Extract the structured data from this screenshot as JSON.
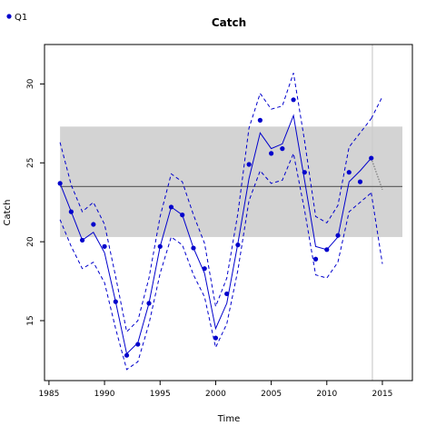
{
  "chart_data": {
    "type": "line",
    "title": "Catch",
    "xlabel": "Time",
    "ylabel": "Catch",
    "xlim": [
      1984.6,
      2017.7
    ],
    "ylim": [
      11.2,
      32.5
    ],
    "x_ticks": [
      1985,
      1990,
      1995,
      2000,
      2005,
      2010,
      2015
    ],
    "y_ticks": [
      15,
      20,
      25,
      30
    ],
    "grid": false,
    "legend_position": "top-left",
    "colors": {
      "series": "#0000cc",
      "band": "#d3d3d3",
      "mean_line": "#666666",
      "forecast": "#666666",
      "vline": "#cccccc"
    },
    "band": {
      "x": [
        1986,
        2016.8
      ],
      "y": [
        20.3,
        27.3
      ]
    },
    "hline": 23.5,
    "vline": 2014.1,
    "x": [
      1986,
      1987,
      1988,
      1989,
      1990,
      1991,
      1992,
      1993,
      1994,
      1995,
      1996,
      1997,
      1998,
      1999,
      2000,
      2001,
      2002,
      2003,
      2004,
      2005,
      2006,
      2007,
      2008,
      2009,
      2010,
      2011,
      2012,
      2013,
      2014
    ],
    "series": [
      {
        "name": "Q1",
        "style": "points",
        "values": [
          23.7,
          21.9,
          20.1,
          21.1,
          19.7,
          16.2,
          12.8,
          13.5,
          16.1,
          19.7,
          22.2,
          21.7,
          19.6,
          18.3,
          13.9,
          16.7,
          19.8,
          24.9,
          27.7,
          25.6,
          25.9,
          29.0,
          24.4,
          18.9,
          19.5,
          20.4,
          24.4,
          23.8,
          25.3
        ]
      },
      {
        "style": "solid",
        "values": [
          23.7,
          21.9,
          20.1,
          20.6,
          19.3,
          16.2,
          12.9,
          13.6,
          16.1,
          19.7,
          22.2,
          21.7,
          19.6,
          18.0,
          14.5,
          16.1,
          19.9,
          24.0,
          26.9,
          25.9,
          26.2,
          28.0,
          23.9,
          19.7,
          19.5,
          20.3,
          23.8,
          24.5,
          25.3
        ]
      },
      {
        "style": "dashed",
        "values": [
          26.3,
          23.6,
          21.9,
          22.5,
          21.1,
          17.8,
          14.3,
          15.0,
          17.7,
          21.6,
          24.3,
          23.8,
          21.7,
          19.9,
          15.9,
          17.7,
          21.8,
          27.2,
          29.4,
          28.4,
          28.6,
          30.7,
          26.4,
          21.6,
          21.2,
          22.3,
          26.0,
          26.9,
          27.8
        ]
      },
      {
        "style": "dashed",
        "values": [
          21.4,
          19.7,
          18.3,
          18.7,
          17.4,
          14.5,
          11.9,
          12.4,
          14.8,
          18.0,
          20.3,
          19.8,
          17.9,
          16.5,
          13.3,
          14.8,
          18.2,
          22.6,
          24.5,
          23.7,
          23.9,
          25.6,
          22.0,
          17.9,
          17.7,
          18.7,
          21.9,
          22.5,
          23.1
        ]
      }
    ],
    "forecast": {
      "x": [
        2014,
        2015
      ],
      "values": [
        25.3,
        23.3
      ],
      "upper_x": [
        2014,
        2015
      ],
      "upper": [
        27.8,
        29.2
      ],
      "lower_x": [
        2014,
        2015
      ],
      "lower": [
        23.1,
        18.6
      ]
    }
  }
}
